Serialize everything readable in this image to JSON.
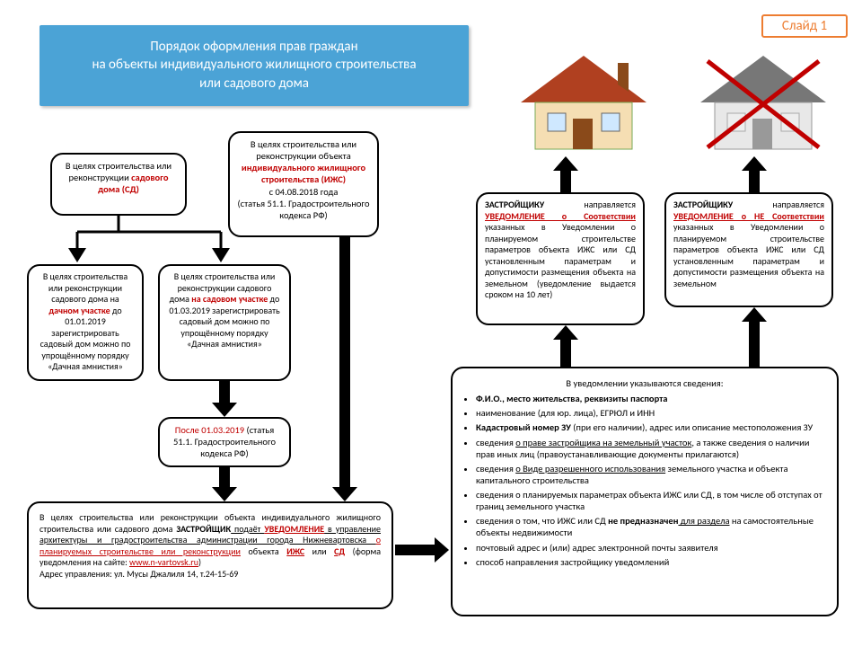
{
  "slide_badge": "Слайд 1",
  "title": "Порядок оформления прав граждан\nна объекты индивидуального жилищного строительства\nили садового дома",
  "colors": {
    "title_bg": "#4ba3d6",
    "accent": "#ed7d31",
    "red": "#c00000",
    "border": "#000000",
    "bg": "#ffffff"
  },
  "nodes": {
    "n1_pre": "В целях строительства или реконструкции ",
    "n1_red": "садового дома (СД)",
    "n2_pre": "В целях строительства или реконструкции объекта ",
    "n2_red": "индивидуального жилищного строительства (ИЖС)",
    "n2_mid": " с 04.08.2018 года",
    "n2_post": "(статья 51.1. Градостроительного кодекса РФ)",
    "n3_pre": "В целях строительства или реконструкции садового дома на ",
    "n3_red": "дачном участке",
    "n3_post": " до 01.01.2019 зарегистрировать садовый дом можно по упрощённому порядку «Дачная амнистия»",
    "n4_pre": "В целях строительства или реконструкции садового дома ",
    "n4_red": "на садовом участке",
    "n4_post": " до 01.03.2019 зарегистрировать садовый дом можно по упрощённому порядку «Дачная амнистия»",
    "n5_red": "После 01.03.2019",
    "n5_post": " (статья 51.1. Градостроительного кодекса РФ)",
    "n6_a": "В целях строительства или реконструкции объекта индивидуального жилищного строительства или садового дома ",
    "n6_b": "ЗАСТРОЙЩИК",
    "n6_c": " подаёт ",
    "n6_d": "УВЕДОМЛЕНИЕ",
    "n6_e": " в управление архитектуры и градостроительства администрации города Нижневартовска ",
    "n6_f": "о планируемых строительстве или реконструкции",
    "n6_g": " объекта ",
    "n6_h": "ИЖС",
    "n6_i": " или ",
    "n6_j": "СД",
    "n6_k": " (форма уведомления на сайте: ",
    "n6_link": "www.n-vartovsk.ru",
    "n6_l": ")",
    "n6_addr": "Адрес управления: ул. Мусы Джалиля 14, т.24-15-69",
    "info_title": "В уведомлении указываются сведения:",
    "info_items": [
      {
        "pre": "",
        "b": "Ф.И.О., место жительства, реквизиты паспорта",
        "post": ""
      },
      {
        "pre": "наименование (для юр. лица), ЕГРЮЛ и ИНН",
        "b": "",
        "post": ""
      },
      {
        "pre": "",
        "b": "Кадастровый номер ЗУ",
        "post": " (при его наличии), адрес или описание местоположения ЗУ"
      },
      {
        "pre": "сведения ",
        "u": "о праве застройщика на земельный участок",
        "post": ", а также сведения о наличии прав иных лиц  (правоустанавливающие документы прилагаются)"
      },
      {
        "pre": "сведения ",
        "u": "о Виде разрешенного использования",
        "post": "  земельного участка и объекта капитального строительства"
      },
      {
        "pre": "сведения о планируемых параметрах объекта ИЖС или СД, в том числе об отступах от границ земельного участка",
        "b": "",
        "post": ""
      },
      {
        "pre": "сведения о том, что ИЖС или СД ",
        "b": "не предназначен",
        "u2": " для раздела",
        "post": " на самостоятельные объекты недвижимости"
      },
      {
        "pre": "почтовый адрес и (или) адрес электронной почты заявителя",
        "b": "",
        "post": ""
      },
      {
        "pre": "способ направления застройщику уведомлений",
        "b": "",
        "post": ""
      }
    ],
    "notify_ok_a": "ЗАСТРОЙЩИКУ",
    "notify_ok_b": " направляется ",
    "notify_ok_c": "УВЕДОМЛЕНИЕ о Соответствии",
    "notify_ok_d": " указанных в Уведомлении о планируемом строительстве параметров объекта ИЖС или СД установленным параметрам и допустимости размещения объекта на земельном (уведомление выдается сроком на 10 лет)",
    "notify_no_a": "ЗАСТРОЙЩИКУ",
    "notify_no_b": " направляется ",
    "notify_no_c": "УВЕДОМЛЕНИЕ о НЕ Соответствии",
    "notify_no_d": " указанных в Уведомлении о планируемом строительстве параметров объекта ИЖС или СД установленным параметрам и допустимости размещения объекта на земельном"
  }
}
